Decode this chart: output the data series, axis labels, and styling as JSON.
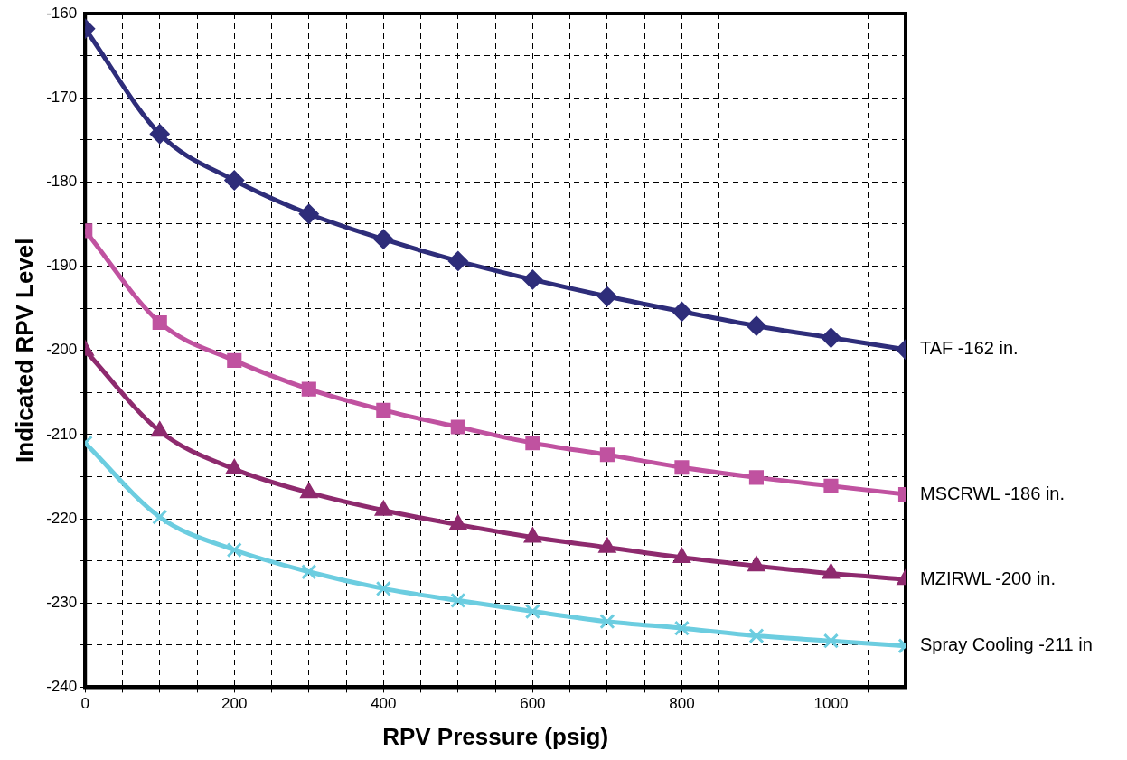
{
  "chart_data": {
    "type": "line",
    "xlabel": "RPV Pressure (psig)",
    "ylabel": "Indicated RPV Level",
    "x": [
      0,
      100,
      200,
      300,
      400,
      500,
      600,
      700,
      800,
      900,
      1000,
      1100
    ],
    "xlim": [
      0,
      1100
    ],
    "xticks": [
      0,
      {
        "value": 50,
        "label": null
      },
      {
        "value": 100,
        "label": null
      },
      {
        "value": 150,
        "label": null
      },
      200,
      {
        "value": 250,
        "label": null
      },
      {
        "value": 300,
        "label": null
      },
      {
        "value": 350,
        "label": null
      },
      400,
      {
        "value": 450,
        "label": null
      },
      {
        "value": 500,
        "label": null
      },
      {
        "value": 550,
        "label": null
      },
      600,
      {
        "value": 650,
        "label": null
      },
      {
        "value": 700,
        "label": null
      },
      {
        "value": 750,
        "label": null
      },
      800,
      {
        "value": 850,
        "label": null
      },
      {
        "value": 900,
        "label": null
      },
      {
        "value": 950,
        "label": null
      },
      1000,
      {
        "value": 1050,
        "label": null
      },
      {
        "value": 1100,
        "label": null
      }
    ],
    "ylim": [
      -240,
      -160
    ],
    "yticks": [
      -240,
      {
        "value": -235,
        "label": null
      },
      -230,
      {
        "value": -225,
        "label": null
      },
      -220,
      {
        "value": -215,
        "label": null
      },
      -210,
      {
        "value": -205,
        "label": null
      },
      -200,
      {
        "value": -195,
        "label": null
      },
      -190,
      {
        "value": -185,
        "label": null
      },
      -180,
      {
        "value": -175,
        "label": null
      },
      -170,
      {
        "value": -165,
        "label": null
      },
      -160
    ],
    "grid": true,
    "line_style": "solid",
    "legend": false,
    "series": [
      {
        "name": "TAF -162 in.",
        "color": "#2e2d7a",
        "marker": "diamond",
        "values": [
          -161.8,
          -174.3,
          -179.8,
          -183.8,
          -186.8,
          -189.4,
          -191.6,
          -193.6,
          -195.4,
          -197.1,
          -198.5,
          -199.9
        ]
      },
      {
        "name": "MSCRWL -186 in.",
        "color": "#c052a0",
        "marker": "square",
        "values": [
          -185.8,
          -196.7,
          -201.2,
          -204.6,
          -207.1,
          -209.1,
          -211.0,
          -212.4,
          -213.9,
          -215.1,
          -216.1,
          -217.1
        ]
      },
      {
        "name": "MZIRWL -200 in.",
        "color": "#8e2a6e",
        "marker": "triangle",
        "values": [
          -200,
          -209.6,
          -214.1,
          -216.9,
          -219.0,
          -220.7,
          -222.2,
          -223.4,
          -224.6,
          -225.6,
          -226.5,
          -227.2
        ]
      },
      {
        "name": "Spray Cooling -211 in",
        "color": "#6ccde0",
        "marker": "cross",
        "values": [
          -211,
          -219.8,
          -223.7,
          -226.3,
          -228.3,
          -229.7,
          -231.0,
          -232.2,
          -233.0,
          -233.9,
          -234.5,
          -235.1
        ]
      }
    ]
  }
}
